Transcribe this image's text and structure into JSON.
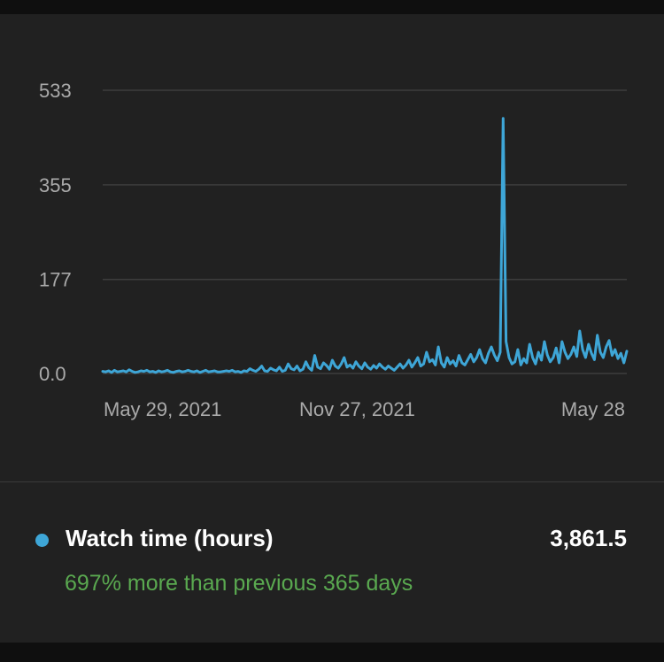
{
  "chart_data": {
    "type": "line",
    "y_ticks": [
      "533",
      "355",
      "177",
      "0.0"
    ],
    "y_tick_values": [
      533,
      355,
      177,
      0
    ],
    "x_ticks": [
      "May 29, 2021",
      "Nov 27, 2021",
      "May 28"
    ],
    "ylim": [
      0,
      533
    ],
    "grid": true,
    "series": [
      {
        "name": "Watch time (hours)",
        "color": "#3ea6d7",
        "values": [
          4,
          3,
          5,
          2,
          6,
          3,
          4,
          5,
          3,
          7,
          4,
          2,
          3,
          5,
          4,
          6,
          3,
          4,
          2,
          5,
          3,
          4,
          6,
          3,
          2,
          4,
          5,
          3,
          4,
          6,
          4,
          3,
          5,
          2,
          4,
          6,
          3,
          4,
          5,
          3,
          3,
          4,
          5,
          4,
          6,
          3,
          4,
          2,
          5,
          4,
          9,
          6,
          4,
          8,
          14,
          5,
          4,
          10,
          7,
          5,
          12,
          4,
          6,
          18,
          9,
          7,
          14,
          5,
          8,
          22,
          11,
          6,
          34,
          12,
          9,
          20,
          15,
          8,
          25,
          14,
          10,
          18,
          30,
          12,
          16,
          10,
          22,
          14,
          9,
          20,
          12,
          8,
          15,
          10,
          18,
          12,
          8,
          14,
          10,
          6,
          12,
          18,
          10,
          16,
          25,
          12,
          20,
          30,
          14,
          18,
          40,
          22,
          26,
          16,
          50,
          20,
          12,
          30,
          18,
          24,
          14,
          34,
          20,
          16,
          26,
          36,
          22,
          30,
          45,
          28,
          20,
          38,
          50,
          35,
          24,
          40,
          480,
          60,
          30,
          18,
          22,
          45,
          16,
          28,
          20,
          55,
          30,
          18,
          40,
          25,
          60,
          35,
          22,
          30,
          48,
          20,
          60,
          40,
          28,
          36,
          50,
          32,
          80,
          45,
          30,
          55,
          38,
          26,
          72,
          40,
          30,
          50,
          62,
          34,
          45,
          28,
          38,
          20,
          42
        ]
      }
    ]
  },
  "legend": {
    "label": "Watch time (hours)",
    "value": "3,861.5",
    "comparison": "697% more than previous 365 days",
    "series_color": "#3ea6d7",
    "comparison_color": "#5aa950"
  }
}
